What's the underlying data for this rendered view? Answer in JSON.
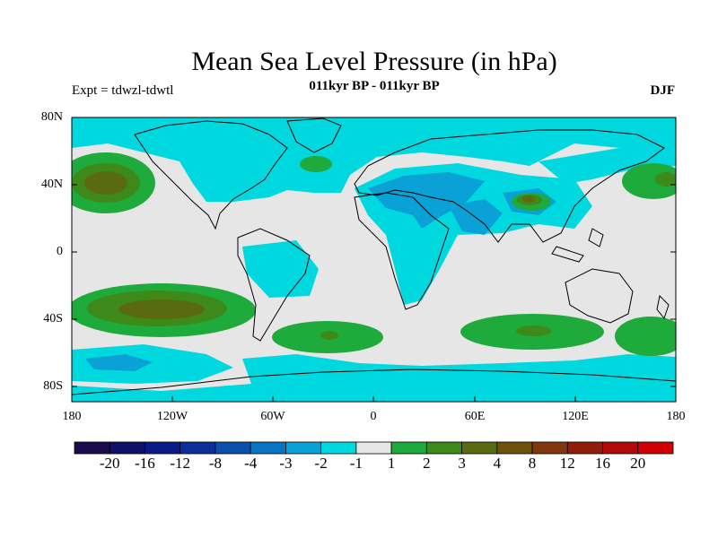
{
  "title": "Mean Sea Level Pressure (in hPa)",
  "subtitle": "011kyr BP - 011kyr BP",
  "experiment": "Expt = tdwzl-tdwtl",
  "season": "DJF",
  "y_ticks": [
    "80N",
    "40N",
    "0",
    "40S",
    "80S"
  ],
  "x_ticks": [
    "180",
    "120W",
    "60W",
    "0",
    "60E",
    "120E",
    "180"
  ],
  "colorbar": {
    "labels": [
      "-20",
      "-16",
      "-12",
      "-8",
      "-4",
      "-3",
      "-2",
      "-1",
      "1",
      "2",
      "3",
      "4",
      "8",
      "12",
      "16",
      "20"
    ],
    "colors": [
      "#1a0a4e",
      "#101068",
      "#0a1a86",
      "#0a2e9a",
      "#0a50aa",
      "#0a74c4",
      "#0aa2d6",
      "#00d8e0",
      "#e6e6e6",
      "#1faa3c",
      "#3d8a1a",
      "#5a6a10",
      "#6e520c",
      "#80380c",
      "#901c0a",
      "#b00a0a",
      "#d00000"
    ]
  },
  "colors": {
    "background": "#e6e6e6",
    "land_line": "#000000"
  }
}
